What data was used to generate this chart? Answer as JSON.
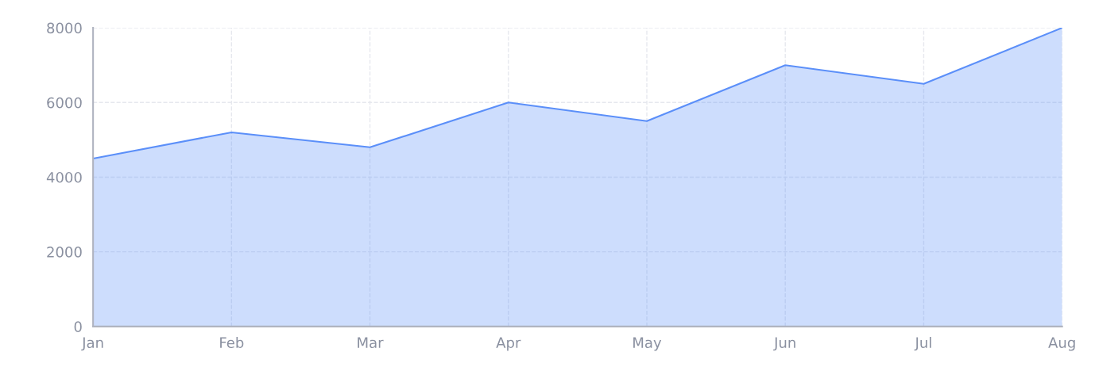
{
  "chart_data": {
    "type": "area",
    "categories": [
      "Jan",
      "Feb",
      "Mar",
      "Apr",
      "May",
      "Jun",
      "Jul",
      "Aug"
    ],
    "series": [
      {
        "color": "#5b8ff9",
        "values": [
          4500,
          5200,
          4800,
          6000,
          5500,
          7000,
          6500,
          8000
        ]
      }
    ],
    "ylim": [
      0,
      8000
    ],
    "yticks": [
      0,
      2000,
      4000,
      6000,
      8000
    ],
    "grid": true,
    "marker": "none",
    "line_style": "solid"
  }
}
